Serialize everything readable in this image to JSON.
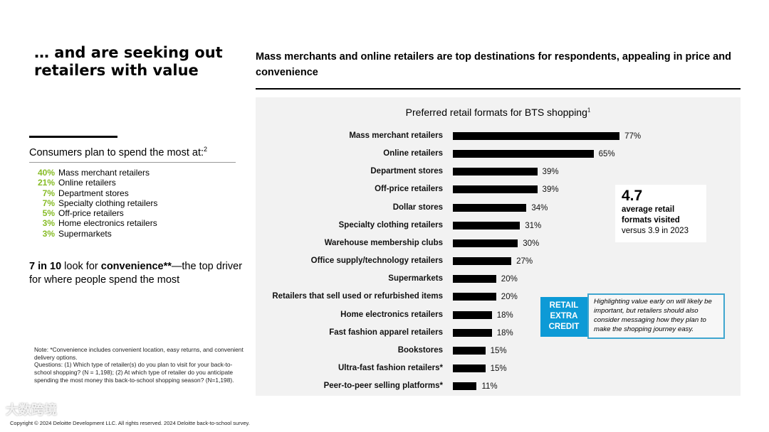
{
  "left": {
    "title": "… and are seeking out retailers with value",
    "spend_heading": "Consumers plan to spend the most at:",
    "spend_heading_sup": "2",
    "spend_items": [
      {
        "pct": "40%",
        "label": "Mass merchant retailers"
      },
      {
        "pct": "21%",
        "label": "Online retailers"
      },
      {
        "pct": "7%",
        "label": "Department stores"
      },
      {
        "pct": "7%",
        "label": "Specialty clothing retailers"
      },
      {
        "pct": "5%",
        "label": "Off-price retailers"
      },
      {
        "pct": "3%",
        "label": "Home electronics retailers"
      },
      {
        "pct": "3%",
        "label": "Supermarkets"
      }
    ],
    "convenience_a": "7 in 10",
    "convenience_b": " look for ",
    "convenience_c": "convenience**",
    "convenience_d": "—the top driver for where people spend the most",
    "note1": "Note: *Convenience includes convenient location, easy returns, and convenient delivery options.",
    "note2": "Questions: (1) Which type of retailer(s) do you plan to visit for your back-to-school shopping? (N = 1,198); (2) At which type of retailer do you anticipate spending the most money this back-to-school shopping season? (N=1,198).",
    "copyright": "Copyright © 2024 Deloitte Development LLC. All rights reserved. 2024 Deloitte back-to-school survey."
  },
  "right": {
    "subtitle": "Mass merchants and online retailers are top destinations for respondents, appealing in price and convenience",
    "stat_value": "4.7",
    "stat_line1": "average retail formats visited",
    "stat_line2": "versus 3.9 in 2023",
    "badge": "RETAIL EXTRA CREDIT",
    "badge_text": "Highlighting value early on will likely be important, but retailers should also consider messaging how they plan to make the shopping journey easy."
  },
  "watermark": "大数跨境",
  "colors": {
    "green": "#86bc25",
    "blue": "#0d9ad6",
    "panel": "#f2f2f2"
  },
  "chart_data": {
    "type": "bar",
    "orientation": "horizontal",
    "title": "Preferred retail formats for BTS shopping",
    "title_sup": "1",
    "categories": [
      "Mass merchant retailers",
      "Online retailers",
      "Department stores",
      "Off-price retailers",
      "Dollar stores",
      "Specialty clothing retailers",
      "Warehouse membership clubs",
      "Office supply/technology retailers",
      "Supermarkets",
      "Retailers that sell used or refurbished items",
      "Home electronics retailers",
      "Fast fashion apparel retailers",
      "Bookstores",
      "Ultra-fast fashion retailers*",
      "Peer-to-peer selling platforms*"
    ],
    "values": [
      77,
      65,
      39,
      39,
      34,
      31,
      30,
      27,
      20,
      20,
      18,
      18,
      15,
      15,
      11
    ],
    "unit": "%"
  }
}
